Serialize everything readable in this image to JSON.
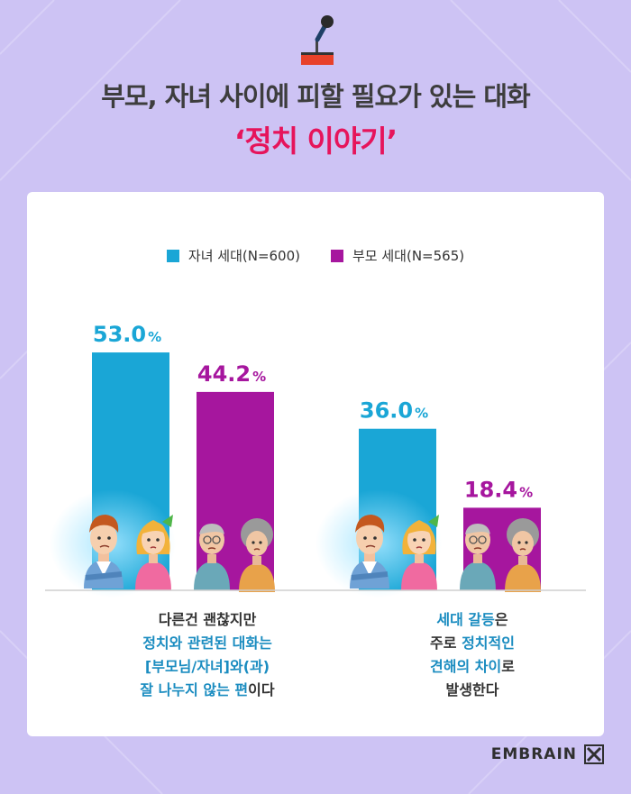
{
  "title_line1": "부모, 자녀 사이에 피할 필요가 있는 대화",
  "title_line2": "‘정치 이야기’",
  "colors": {
    "background": "#cdc3f4",
    "children": "#1aa6d6",
    "parents": "#a6169e",
    "highlight_title": "#e6145b",
    "highlight_caption": "#1a8cc0"
  },
  "legend": [
    {
      "label": "자녀 세대(N=600)",
      "color": "#1aa6d6"
    },
    {
      "label": "부모 세대(N=565)",
      "color": "#a6169e"
    }
  ],
  "chart_data": {
    "type": "bar",
    "series": [
      {
        "name": "자녀 세대(N=600)",
        "values": [
          53.0,
          36.0
        ]
      },
      {
        "name": "부모 세대(N=565)",
        "values": [
          44.2,
          18.4
        ]
      }
    ],
    "value_labels": [
      [
        "53.0",
        "36.0"
      ],
      [
        "44.2",
        "18.4"
      ]
    ],
    "unit": "%",
    "ylim": [
      0,
      60
    ],
    "grid": false,
    "legend_position": "top-center"
  },
  "captions": [
    {
      "lines": [
        [
          {
            "t": "다른건 괜찮지만",
            "h": false
          }
        ],
        [
          {
            "t": "정치와 관련된 대화는",
            "h": true
          }
        ],
        [
          {
            "t": "[부모님/자녀]와(과)",
            "h": true
          }
        ],
        [
          {
            "t": "잘 나누지 않는 편",
            "h": true
          },
          {
            "t": "이다",
            "h": false
          }
        ]
      ]
    },
    {
      "lines": [
        [
          {
            "t": "세대 갈등",
            "h": true
          },
          {
            "t": "은",
            "h": false
          }
        ],
        [
          {
            "t": "주로 ",
            "h": false
          },
          {
            "t": "정치적인",
            "h": true
          }
        ],
        [
          {
            "t": "견해의 차이",
            "h": true
          },
          {
            "t": "로",
            "h": false
          }
        ],
        [
          {
            "t": "발생한다",
            "h": false
          }
        ]
      ]
    }
  ],
  "brand": "EMBRAIN"
}
